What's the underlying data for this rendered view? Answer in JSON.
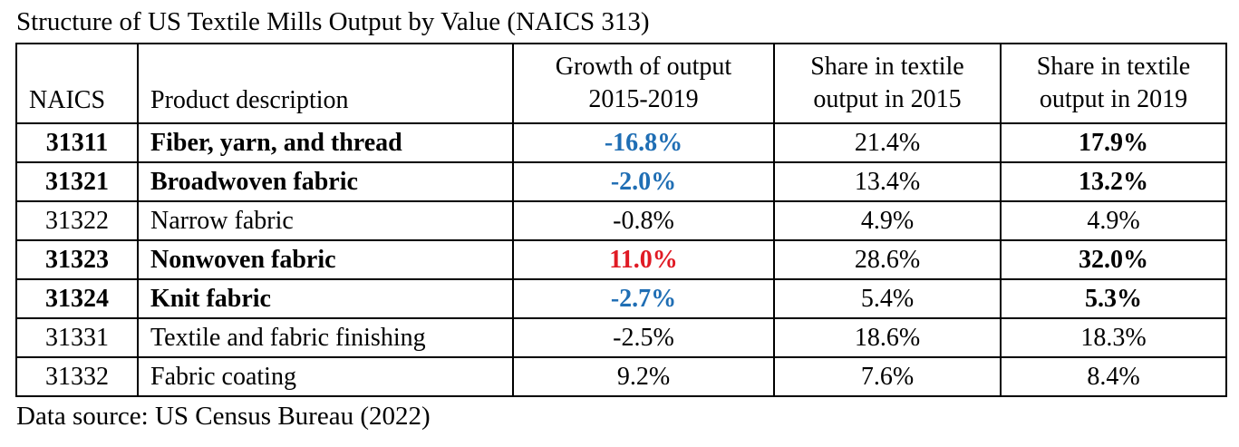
{
  "title": "Structure of US Textile Mills Output by Value (NAICS 313)",
  "footer": "Data source: US Census Bureau (2022)",
  "colors": {
    "decline_blue": "#1f6eb4",
    "growth_red": "#e01a24",
    "text": "#000000",
    "border": "#000000",
    "background": "#ffffff"
  },
  "table": {
    "columns": [
      {
        "key": "naics",
        "label": "NAICS"
      },
      {
        "key": "description",
        "label": "Product description"
      },
      {
        "key": "growth",
        "label": "Growth of output\n2015-2019"
      },
      {
        "key": "share2015",
        "label": "Share in textile\noutput in 2015"
      },
      {
        "key": "share2019",
        "label": "Share in textile\noutput in 2019"
      }
    ],
    "rows": [
      {
        "naics": "31311",
        "description": "Fiber, yarn, and thread",
        "growth": "-16.8%",
        "share2015": "21.4%",
        "share2019": "17.9%",
        "bold": true,
        "growth_color": "blue"
      },
      {
        "naics": "31321",
        "description": "Broadwoven fabric",
        "growth": "-2.0%",
        "share2015": "13.4%",
        "share2019": "13.2%",
        "bold": true,
        "growth_color": "blue"
      },
      {
        "naics": "31322",
        "description": "Narrow fabric",
        "growth": "-0.8%",
        "share2015": "4.9%",
        "share2019": "4.9%",
        "bold": false,
        "growth_color": null
      },
      {
        "naics": "31323",
        "description": "Nonwoven fabric",
        "growth": "11.0%",
        "share2015": "28.6%",
        "share2019": "32.0%",
        "bold": true,
        "growth_color": "red"
      },
      {
        "naics": "31324",
        "description": "Knit fabric",
        "growth": "-2.7%",
        "share2015": "5.4%",
        "share2019": "5.3%",
        "bold": true,
        "growth_color": "blue"
      },
      {
        "naics": "31331",
        "description": "Textile and fabric finishing",
        "growth": "-2.5%",
        "share2015": "18.6%",
        "share2019": "18.3%",
        "bold": false,
        "growth_color": null
      },
      {
        "naics": "31332",
        "description": "Fabric coating",
        "growth": "9.2%",
        "share2015": "7.6%",
        "share2019": "8.4%",
        "bold": false,
        "growth_color": null
      }
    ]
  }
}
